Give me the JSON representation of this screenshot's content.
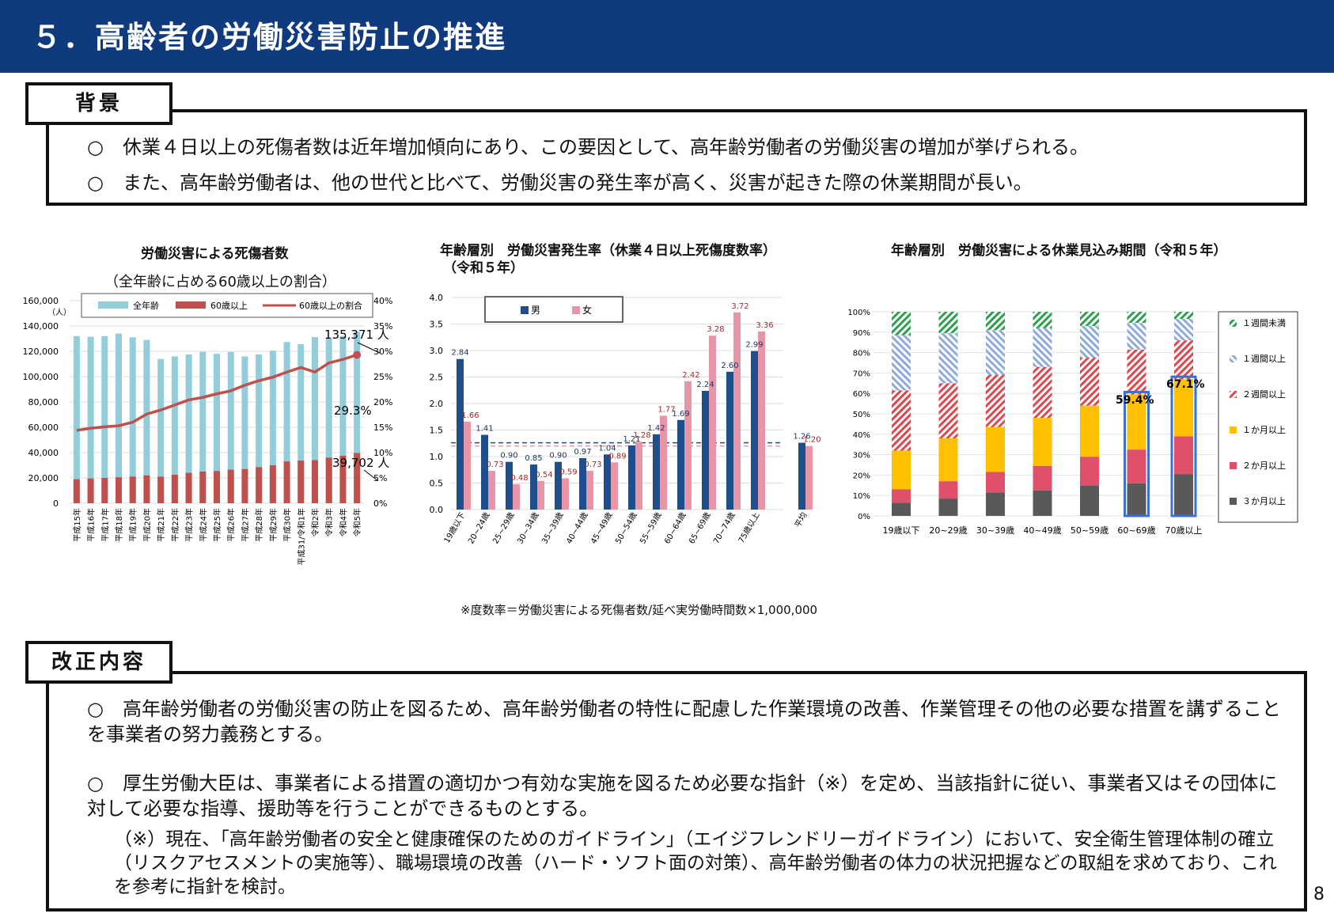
{
  "header": {
    "title": "５．高齢者の労働災害防止の推進"
  },
  "background": {
    "tab": "背景",
    "items": [
      "○　休業４日以上の死傷者数は近年増加傾向にあり、この要因として、高年齢労働者の労働災害の増加が挙げられる。",
      "○　また、高年齢労働者は、他の世代と比べて、労働災害の発生率が高く、災害が起きた際の休業期間が長い。"
    ]
  },
  "chart1": {
    "title": "労働災害による死傷者数",
    "subtitle": "（全年齢に占める60歳以上の割合）",
    "unit": "（人）",
    "legend": [
      "全年齢",
      "60歳以上",
      "60歳以上の割合"
    ],
    "annotations": {
      "total_last": "135,371 人",
      "ratio_last": "29.3%",
      "senior_last": "39,702 人"
    }
  },
  "chart2": {
    "title": "年齢層別　労働災害発生率（休業４日以上死傷度数率）",
    "title2": "（令和５年）",
    "legend": [
      "男",
      "女"
    ],
    "footnote": "※度数率＝労働災害による死傷者数/延べ実労働時間数×1,000,000"
  },
  "chart3": {
    "title": "年齢層別　労働災害による休業見込み期間（令和５年）",
    "legend": [
      "１週間未満",
      "１週間以上",
      "２週間以上",
      "１か月以上",
      "２か月以上",
      "３か月以上"
    ],
    "annotations": {
      "age60": "59.4%",
      "age70": "67.1%"
    }
  },
  "reform": {
    "tab": "改正内容",
    "item1": "○　高年齢労働者の労働災害の防止を図るため、高年齢労働者の特性に配慮した作業環境の改善、作業管理その他の必要な措置を講ずることを事業者の努力義務とする。",
    "item2": "○　厚生労働大臣は、事業者による措置の適切かつ有効な実施を図るため必要な指針（※）を定め、当該指針に従い、事業者又はその団体に対して必要な指導、援助等を行うことができるものとする。",
    "note": "（※）現在、「高年齢労働者の安全と健康確保のためのガイドライン」（エイジフレンドリーガイドライン）において、安全衛生管理体制の確立（リスクアセスメントの実施等）、職場環境の改善（ハード・ソフト面の対策）、高年齢労働者の体力の状況把握などの取組を求めており、これを参考に指針を検討。"
  },
  "page_number": "8",
  "colors": {
    "header": "#103a7e",
    "total": "#92cddc",
    "senior": "#c0504d",
    "male": "#1f4e8c",
    "female": "#e895a8"
  },
  "chart_data": [
    {
      "type": "bar",
      "categories": [
        "平成15年",
        "平成16年",
        "平成17年",
        "平成18年",
        "平成19年",
        "平成20年",
        "平成21年",
        "平成22年",
        "平成23年",
        "平成24年",
        "平成25年",
        "平成26年",
        "平成27年",
        "平成28年",
        "平成29年",
        "平成30年",
        "平成31/令和1年",
        "令和2年",
        "令和3年",
        "令和4年",
        "令和5年"
      ],
      "series": [
        {
          "name": "全年齢",
          "values": [
            132000,
            131500,
            132000,
            134000,
            131000,
            129000,
            114000,
            116000,
            117500,
            119500,
            118000,
            119500,
            116000,
            117500,
            120500,
            127300,
            125600,
            131200,
            130000,
            132000,
            135371
          ]
        },
        {
          "name": "60歳以上",
          "values": [
            19000,
            19500,
            20000,
            20500,
            21000,
            22000,
            21000,
            22500,
            24000,
            25000,
            25500,
            26500,
            27000,
            28500,
            30000,
            33000,
            33700,
            34000,
            36000,
            37500,
            39702
          ]
        },
        {
          "name": "60歳以上の割合",
          "axis": "right",
          "values": [
            14.4,
            14.8,
            15.1,
            15.3,
            16.0,
            17.6,
            18.4,
            19.4,
            20.4,
            20.9,
            21.6,
            22.2,
            23.3,
            24.2,
            24.9,
            25.9,
            26.8,
            25.9,
            27.7,
            28.4,
            29.3
          ]
        }
      ],
      "ylim": [
        0,
        160000
      ],
      "yticks": [
        "0",
        "20,000",
        "40,000",
        "60,000",
        "80,000",
        "100,000",
        "120,000",
        "140,000",
        "160,000"
      ],
      "y2ticks": [
        "0%",
        "5%",
        "10%",
        "15%",
        "20%",
        "25%",
        "30%",
        "35%",
        "40%"
      ]
    },
    {
      "type": "bar",
      "categories": [
        "19歳以下",
        "20~24歳",
        "25~29歳",
        "30~34歳",
        "35~39歳",
        "40~44歳",
        "45~49歳",
        "50~54歳",
        "55~59歳",
        "60~64歳",
        "65~69歳",
        "70~74歳",
        "75歳以上",
        "平均"
      ],
      "series": [
        {
          "name": "男",
          "values": [
            2.84,
            1.41,
            0.9,
            0.85,
            0.9,
            0.97,
            1.04,
            1.21,
            1.42,
            1.69,
            2.24,
            2.6,
            2.99,
            1.26
          ]
        },
        {
          "name": "女",
          "values": [
            1.66,
            0.73,
            0.48,
            0.54,
            0.59,
            0.73,
            0.89,
            1.28,
            1.77,
            2.42,
            3.28,
            3.72,
            3.36,
            1.2
          ]
        }
      ],
      "ylim": [
        0,
        4.0
      ],
      "yticks": [
        "0.0",
        "0.5",
        "1.0",
        "1.5",
        "2.0",
        "2.5",
        "3.0",
        "3.5",
        "4.0"
      ]
    },
    {
      "type": "bar",
      "stacked": true,
      "percent": true,
      "categories": [
        "19歳以下",
        "20~29歳",
        "30~39歳",
        "40~49歳",
        "50~59歳",
        "60~69歳",
        "70歳以上"
      ],
      "series": [
        {
          "name": "３か月以上",
          "values": [
            6.5,
            8.5,
            11.5,
            12.5,
            15,
            16,
            20.5
          ]
        },
        {
          "name": "２か月以上",
          "values": [
            6.5,
            8.5,
            10,
            12,
            14,
            16.5,
            18.5
          ]
        },
        {
          "name": "１か月以上",
          "values": [
            19,
            21,
            22,
            23.5,
            25,
            27,
            28
          ]
        },
        {
          "name": "２週間以上",
          "values": [
            29.5,
            27,
            25.5,
            25,
            23.5,
            22,
            19
          ]
        },
        {
          "name": "１週間以上",
          "values": [
            27,
            24.5,
            22,
            19,
            15.5,
            13,
            10.5
          ]
        },
        {
          "name": "１週間未満",
          "values": [
            11.5,
            10.5,
            9,
            8,
            7,
            5.5,
            3.5
          ]
        }
      ],
      "yticks": [
        "0%",
        "10%",
        "20%",
        "30%",
        "40%",
        "50%",
        "60%",
        "70%",
        "80%",
        "90%",
        "100%"
      ]
    }
  ]
}
